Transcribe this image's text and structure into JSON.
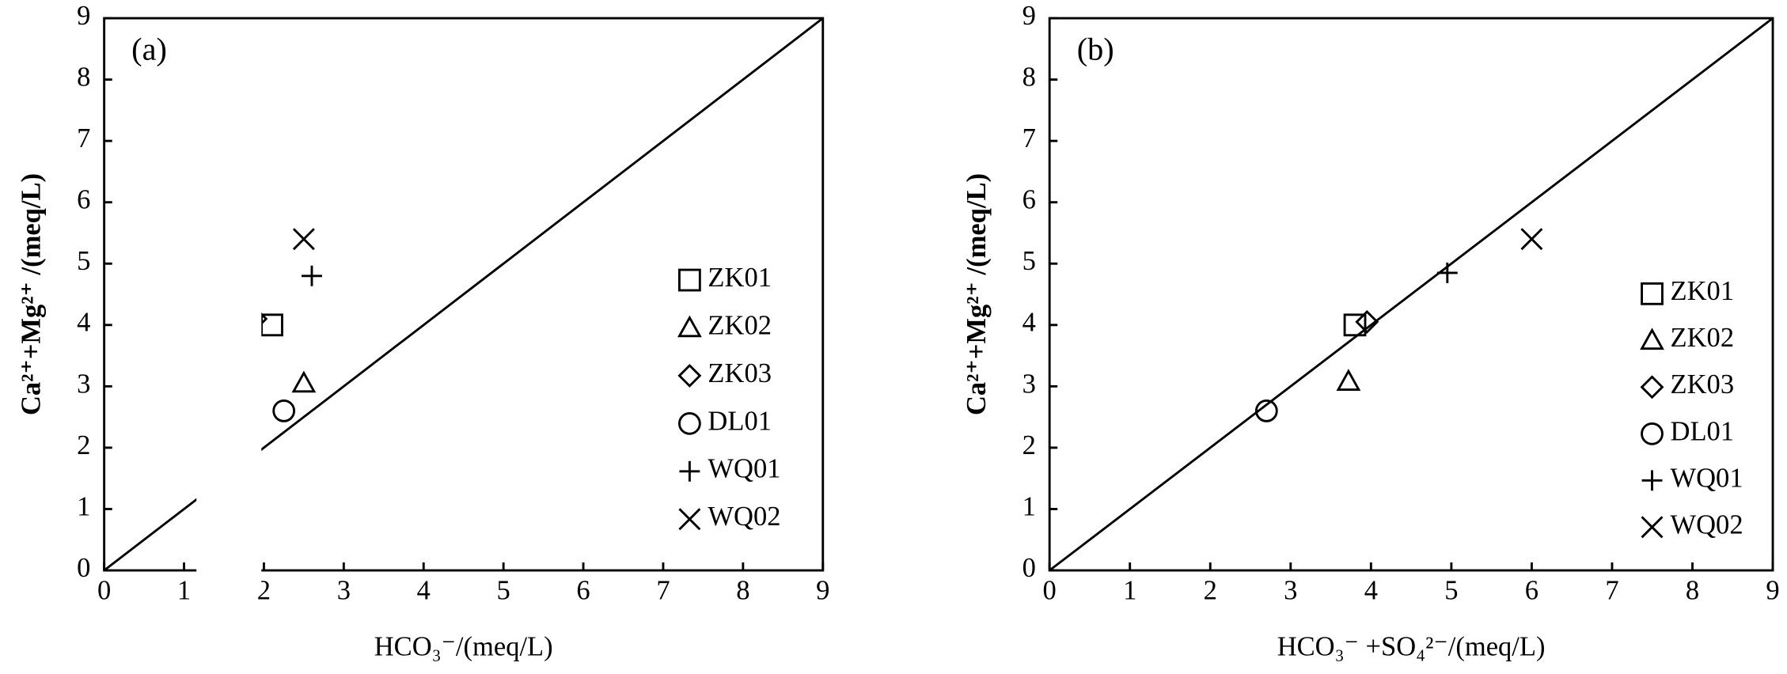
{
  "chart_data": [
    {
      "type": "scatter",
      "panel_label": "(a)",
      "x_label": "HCO₃⁻/(meq/L)",
      "y_label": "Ca²⁺+Mg²⁺ /(meq/L)",
      "xlim": [
        0,
        9
      ],
      "ylim": [
        0,
        9
      ],
      "xticks": [
        0,
        1,
        2,
        3,
        4,
        5,
        6,
        7,
        8,
        9
      ],
      "yticks": [
        0,
        1,
        2,
        3,
        4,
        5,
        6,
        7,
        8,
        9
      ],
      "series": [
        {
          "name": "ZK01",
          "marker": "square",
          "color": "#000000",
          "x": [
            2.1
          ],
          "values": [
            4.0
          ]
        },
        {
          "name": "ZK02",
          "marker": "triangle",
          "color": "#000000",
          "x": [
            2.5
          ],
          "values": [
            3.05
          ]
        },
        {
          "name": "ZK03",
          "marker": "diamond",
          "color": "#000000",
          "x": [
            1.9
          ],
          "values": [
            4.1
          ]
        },
        {
          "name": "DL01",
          "marker": "circle",
          "color": "#000000",
          "x": [
            2.25
          ],
          "values": [
            2.6
          ]
        },
        {
          "name": "WQ01",
          "marker": "plus",
          "color": "#000000",
          "x": [
            2.6
          ],
          "values": [
            4.8
          ]
        },
        {
          "name": "WQ02",
          "marker": "cross",
          "color": "#000000",
          "x": [
            2.5
          ],
          "values": [
            5.4
          ]
        }
      ]
    },
    {
      "type": "scatter",
      "panel_label": "(b)",
      "x_label": "HCO₃⁻ +SO₄²⁻/(meq/L)",
      "y_label": "Ca²⁺+Mg²⁺ /(meq/L)",
      "xlim": [
        0,
        9
      ],
      "ylim": [
        0,
        9
      ],
      "xticks": [
        0,
        1,
        2,
        3,
        4,
        5,
        6,
        7,
        8,
        9
      ],
      "yticks": [
        0,
        1,
        2,
        3,
        4,
        5,
        6,
        7,
        8,
        9
      ],
      "series": [
        {
          "name": "ZK01",
          "marker": "square",
          "color": "#000000",
          "x": [
            3.8
          ],
          "values": [
            4.0
          ]
        },
        {
          "name": "ZK02",
          "marker": "triangle",
          "color": "#000000",
          "x": [
            3.72
          ],
          "values": [
            3.08
          ]
        },
        {
          "name": "ZK03",
          "marker": "diamond",
          "color": "#000000",
          "x": [
            3.95
          ],
          "values": [
            4.05
          ]
        },
        {
          "name": "DL01",
          "marker": "circle",
          "color": "#000000",
          "x": [
            2.7
          ],
          "values": [
            2.6
          ]
        },
        {
          "name": "WQ01",
          "marker": "plus",
          "color": "#000000",
          "x": [
            4.95
          ],
          "values": [
            4.85
          ]
        },
        {
          "name": "WQ02",
          "marker": "cross",
          "color": "#000000",
          "x": [
            6.0
          ],
          "values": [
            5.4
          ]
        }
      ]
    }
  ]
}
